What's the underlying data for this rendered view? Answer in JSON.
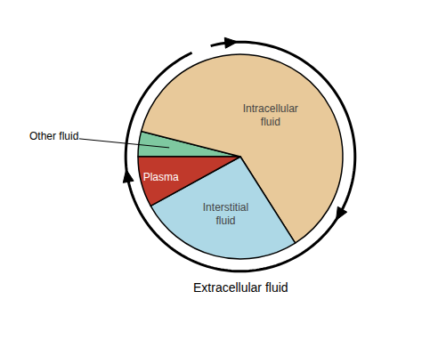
{
  "chart_data": {
    "type": "pie",
    "categories": [
      "Other fluid",
      "Intracellular\nfluid",
      "Interstitial\nfluid",
      "Plasma"
    ],
    "values": [
      4,
      62,
      26,
      8
    ],
    "colors": [
      "#7EC8A0",
      "#E8C99A",
      "#ADD8E6",
      "#C0392B"
    ],
    "annotations": [
      "Extracellular fluid"
    ]
  }
}
